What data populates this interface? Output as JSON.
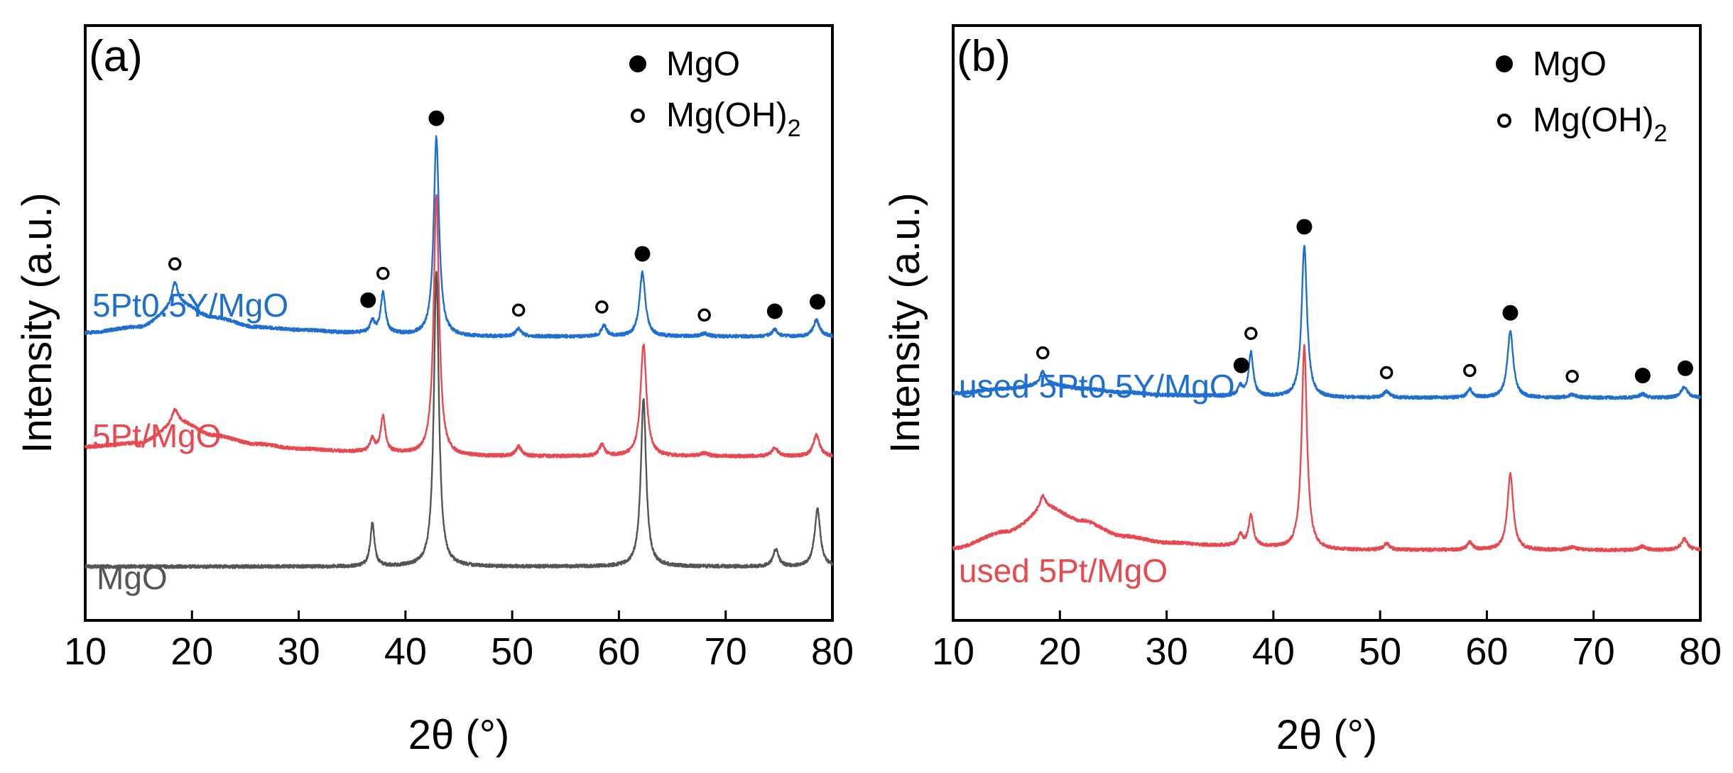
{
  "figure": {
    "colors": {
      "blue": "#1f6fd1",
      "red": "#e8484f",
      "gray": "#555555",
      "axis": "#000000"
    },
    "legend": {
      "mgo_label": "MgO",
      "mgoh2_label": "Mg(OH)",
      "mgoh2_sub": "2"
    }
  },
  "chart_data": [
    {
      "type": "line",
      "panel_label": "(a)",
      "xlabel": "2θ (°)",
      "ylabel": "Intensity (a.u.)",
      "xlim": [
        10,
        80
      ],
      "xticks": [
        10,
        20,
        30,
        40,
        50,
        60,
        70,
        80
      ],
      "y_units": "arbitrary (stacked, offset)",
      "legend": [
        {
          "marker": "filled-circle",
          "label": "MgO"
        },
        {
          "marker": "open-circle",
          "label": "Mg(OH)2"
        }
      ],
      "series": [
        {
          "name": "5Pt0.5Y/MgO",
          "color": "#1f6fd1",
          "offset": 2.45,
          "baseline": [
            [
              10,
              0.04
            ],
            [
              15,
              0.1
            ],
            [
              19,
              0.33
            ],
            [
              22,
              0.2
            ],
            [
              26,
              0.1
            ],
            [
              30,
              0.07
            ],
            [
              35,
              0.04
            ],
            [
              45,
              0.0
            ],
            [
              80,
              0.0
            ]
          ],
          "peaks": [
            [
              18.4,
              0.25,
              0.35
            ],
            [
              36.9,
              0.12,
              0.25
            ],
            [
              37.9,
              0.42,
              0.26
            ],
            [
              42.9,
              2.08,
              0.3
            ],
            [
              50.6,
              0.08,
              0.32
            ],
            [
              58.6,
              0.11,
              0.3
            ],
            [
              62.2,
              0.67,
              0.33
            ],
            [
              68.0,
              0.03,
              0.45
            ],
            [
              74.6,
              0.07,
              0.35
            ],
            [
              78.5,
              0.17,
              0.36
            ]
          ]
        },
        {
          "name": "5Pt/MgO",
          "color": "#e8484f",
          "offset": 1.2,
          "baseline": [
            [
              10,
              0.1
            ],
            [
              15,
              0.14
            ],
            [
              19,
              0.35
            ],
            [
              22,
              0.22
            ],
            [
              26,
              0.13
            ],
            [
              30,
              0.08
            ],
            [
              35,
              0.05
            ],
            [
              45,
              0.0
            ],
            [
              80,
              0.0
            ]
          ],
          "peaks": [
            [
              18.4,
              0.15,
              0.35
            ],
            [
              36.9,
              0.13,
              0.25
            ],
            [
              37.9,
              0.37,
              0.26
            ],
            [
              42.9,
              2.72,
              0.3
            ],
            [
              50.6,
              0.1,
              0.32
            ],
            [
              58.4,
              0.12,
              0.3
            ],
            [
              62.3,
              1.17,
              0.33
            ],
            [
              68.0,
              0.03,
              0.45
            ],
            [
              74.6,
              0.09,
              0.35
            ],
            [
              78.5,
              0.22,
              0.36
            ]
          ]
        },
        {
          "name": "MgO",
          "color": "#555555",
          "offset": 0.05,
          "baseline": [
            [
              10,
              0.0
            ],
            [
              80,
              0.0
            ]
          ],
          "peaks": [
            [
              36.9,
              0.45,
              0.24
            ],
            [
              42.9,
              3.07,
              0.28
            ],
            [
              62.3,
              1.75,
              0.3
            ],
            [
              74.7,
              0.18,
              0.3
            ],
            [
              78.6,
              0.6,
              0.32
            ]
          ]
        }
      ],
      "markers": [
        {
          "x": 18.4,
          "series": "5Pt0.5Y/MgO",
          "type": "open"
        },
        {
          "x": 36.5,
          "series": "5Pt0.5Y/MgO",
          "type": "filled"
        },
        {
          "x": 37.9,
          "series": "5Pt0.5Y/MgO",
          "type": "open"
        },
        {
          "x": 42.9,
          "series": "5Pt0.5Y/MgO",
          "type": "filled"
        },
        {
          "x": 50.6,
          "series": "5Pt0.5Y/MgO",
          "type": "open"
        },
        {
          "x": 58.4,
          "series": "5Pt0.5Y/MgO",
          "type": "open"
        },
        {
          "x": 62.2,
          "series": "5Pt0.5Y/MgO",
          "type": "filled"
        },
        {
          "x": 68.0,
          "series": "5Pt0.5Y/MgO",
          "type": "open"
        },
        {
          "x": 74.6,
          "series": "5Pt0.5Y/MgO",
          "type": "filled"
        },
        {
          "x": 78.6,
          "series": "5Pt0.5Y/MgO",
          "type": "filled"
        }
      ]
    },
    {
      "type": "line",
      "panel_label": "(b)",
      "xlabel": "2θ (°)",
      "ylabel": "Intensity (a.u.)",
      "xlim": [
        10,
        80
      ],
      "xticks": [
        10,
        20,
        30,
        40,
        50,
        60,
        70,
        80
      ],
      "y_units": "arbitrary (stacked, offset)",
      "legend": [
        {
          "marker": "filled-circle",
          "label": "MgO"
        },
        {
          "marker": "open-circle",
          "label": "Mg(OH)2"
        }
      ],
      "series": [
        {
          "name": "used 5Pt0.5Y/MgO",
          "color": "#1f6fd1",
          "offset": 1.65,
          "baseline": [
            [
              10,
              0.05
            ],
            [
              15,
              0.1
            ],
            [
              19,
              0.15
            ],
            [
              22,
              0.1
            ],
            [
              26,
              0.06
            ],
            [
              30,
              0.03
            ],
            [
              35,
              0.02
            ],
            [
              45,
              0.0
            ],
            [
              80,
              0.0
            ]
          ],
          "peaks": [
            [
              18.4,
              0.14,
              0.3
            ],
            [
              36.9,
              0.1,
              0.25
            ],
            [
              37.9,
              0.47,
              0.26
            ],
            [
              42.9,
              1.65,
              0.3
            ],
            [
              50.6,
              0.07,
              0.32
            ],
            [
              58.4,
              0.09,
              0.3
            ],
            [
              62.2,
              0.72,
              0.33
            ],
            [
              68.0,
              0.03,
              0.45
            ],
            [
              74.6,
              0.04,
              0.35
            ],
            [
              78.5,
              0.12,
              0.36
            ]
          ]
        },
        {
          "name": "used 5Pt/MgO",
          "color": "#e8484f",
          "offset": 0.0,
          "baseline": [
            [
              10,
              0.02
            ],
            [
              15,
              0.2
            ],
            [
              19,
              0.45
            ],
            [
              22,
              0.32
            ],
            [
              26,
              0.15
            ],
            [
              30,
              0.08
            ],
            [
              35,
              0.05
            ],
            [
              45,
              0.0
            ],
            [
              80,
              0.0
            ]
          ],
          "peaks": [
            [
              18.4,
              0.15,
              0.35
            ],
            [
              36.9,
              0.12,
              0.25
            ],
            [
              37.9,
              0.34,
              0.26
            ],
            [
              42.9,
              2.2,
              0.3
            ],
            [
              50.6,
              0.07,
              0.32
            ],
            [
              58.4,
              0.08,
              0.3
            ],
            [
              62.2,
              0.82,
              0.33
            ],
            [
              68.0,
              0.03,
              0.45
            ],
            [
              74.6,
              0.04,
              0.35
            ],
            [
              78.5,
              0.12,
              0.36
            ]
          ]
        }
      ],
      "markers": [
        {
          "x": 18.4,
          "series": "used 5Pt0.5Y/MgO",
          "type": "open"
        },
        {
          "x": 37.0,
          "series": "used 5Pt0.5Y/MgO",
          "type": "filled"
        },
        {
          "x": 37.9,
          "series": "used 5Pt0.5Y/MgO",
          "type": "open"
        },
        {
          "x": 42.9,
          "series": "used 5Pt0.5Y/MgO",
          "type": "filled"
        },
        {
          "x": 50.6,
          "series": "used 5Pt0.5Y/MgO",
          "type": "open"
        },
        {
          "x": 58.4,
          "series": "used 5Pt0.5Y/MgO",
          "type": "open"
        },
        {
          "x": 62.2,
          "series": "used 5Pt0.5Y/MgO",
          "type": "filled"
        },
        {
          "x": 68.0,
          "series": "used 5Pt0.5Y/MgO",
          "type": "open"
        },
        {
          "x": 74.6,
          "series": "used 5Pt0.5Y/MgO",
          "type": "filled"
        },
        {
          "x": 78.6,
          "series": "used 5Pt0.5Y/MgO",
          "type": "filled"
        }
      ]
    }
  ]
}
